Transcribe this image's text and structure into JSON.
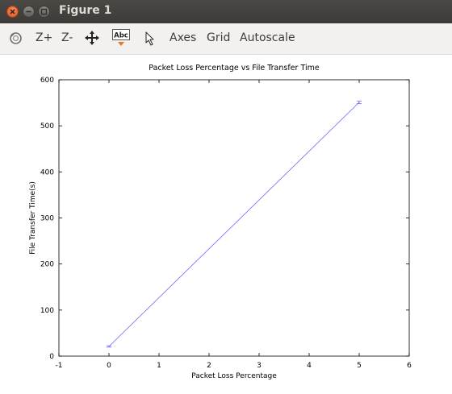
{
  "window": {
    "title": "Figure 1"
  },
  "toolbar": {
    "items": [
      {
        "icon": "rotate-icon"
      },
      {
        "label": "Z+"
      },
      {
        "label": "Z-"
      },
      {
        "icon": "pan-move-icon"
      },
      {
        "icon": "text-abc-icon",
        "text": "Abc"
      },
      {
        "icon": "pointer-arrow-icon"
      },
      {
        "label": "Axes"
      },
      {
        "label": "Grid"
      },
      {
        "label": "Autoscale"
      }
    ]
  },
  "chart_data": {
    "type": "line",
    "title": "Packet Loss Percentage vs File Transfer Time",
    "xlabel": "Packet Loss Percentage",
    "ylabel": "File Transfer Time(s)",
    "xlim": [
      -1,
      6
    ],
    "ylim": [
      0,
      600
    ],
    "xticks": [
      "-1",
      "0",
      "1",
      "2",
      "3",
      "4",
      "5",
      "6"
    ],
    "yticks": [
      "0",
      "100",
      "200",
      "300",
      "400",
      "500",
      "600"
    ],
    "series": [
      {
        "x": [
          0,
          5
        ],
        "y": [
          21,
          551
        ],
        "color": "#6b6bff",
        "error_bar_halfwidth": [
          1.5,
          2.5
        ]
      }
    ],
    "grid": false,
    "legend": "none"
  }
}
